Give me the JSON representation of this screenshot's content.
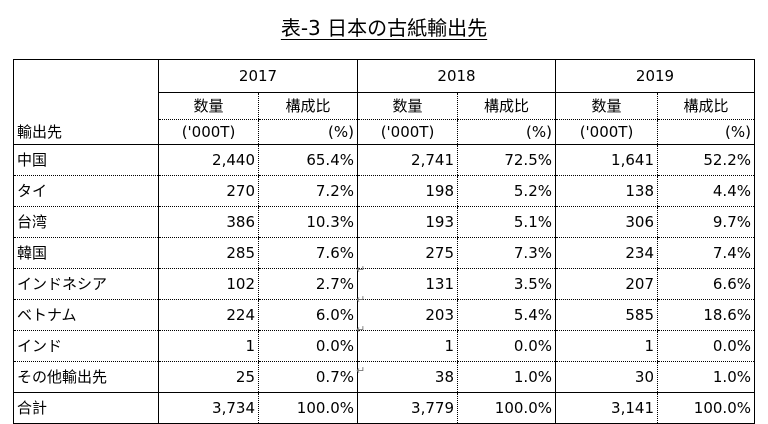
{
  "title": "表-3  日本の古紙輸出先",
  "header": {
    "row_label": "輸出先",
    "years": [
      "2017",
      "2018",
      "2019"
    ],
    "qty_label": "数量",
    "share_label": "構成比",
    "qty_unit": "('000T)",
    "share_unit": "(%)"
  },
  "rows": [
    {
      "name": "中国",
      "v": [
        "2,440",
        "65.4%",
        "2,741",
        "72.5%",
        "1,641",
        "52.2%"
      ]
    },
    {
      "name": "タイ",
      "v": [
        "270",
        "7.2%",
        "198",
        "5.2%",
        "138",
        "4.4%"
      ]
    },
    {
      "name": "台湾",
      "v": [
        "386",
        "10.3%",
        "193",
        "5.1%",
        "306",
        "9.7%"
      ]
    },
    {
      "name": "韓国",
      "v": [
        "285",
        "7.6%",
        "275",
        "7.3%",
        "234",
        "7.4%"
      ]
    },
    {
      "name": "インドネシア",
      "v": [
        "102",
        "2.7%",
        "131",
        "3.5%",
        "207",
        "6.6%"
      ]
    },
    {
      "name": "ベトナム",
      "v": [
        "224",
        "6.0%",
        "203",
        "5.4%",
        "585",
        "18.6%"
      ]
    },
    {
      "name": "インド",
      "v": [
        "1",
        "0.0%",
        "1",
        "0.0%",
        "1",
        "0.0%"
      ]
    },
    {
      "name": "その他輸出先",
      "v": [
        "25",
        "0.7%",
        "38",
        "1.0%",
        "30",
        "1.0%"
      ]
    }
  ],
  "total": {
    "name": "合計",
    "v": [
      "3,734",
      "100.0%",
      "3,779",
      "100.0%",
      "3,141",
      "100.0%"
    ]
  },
  "return_mark": "↵"
}
